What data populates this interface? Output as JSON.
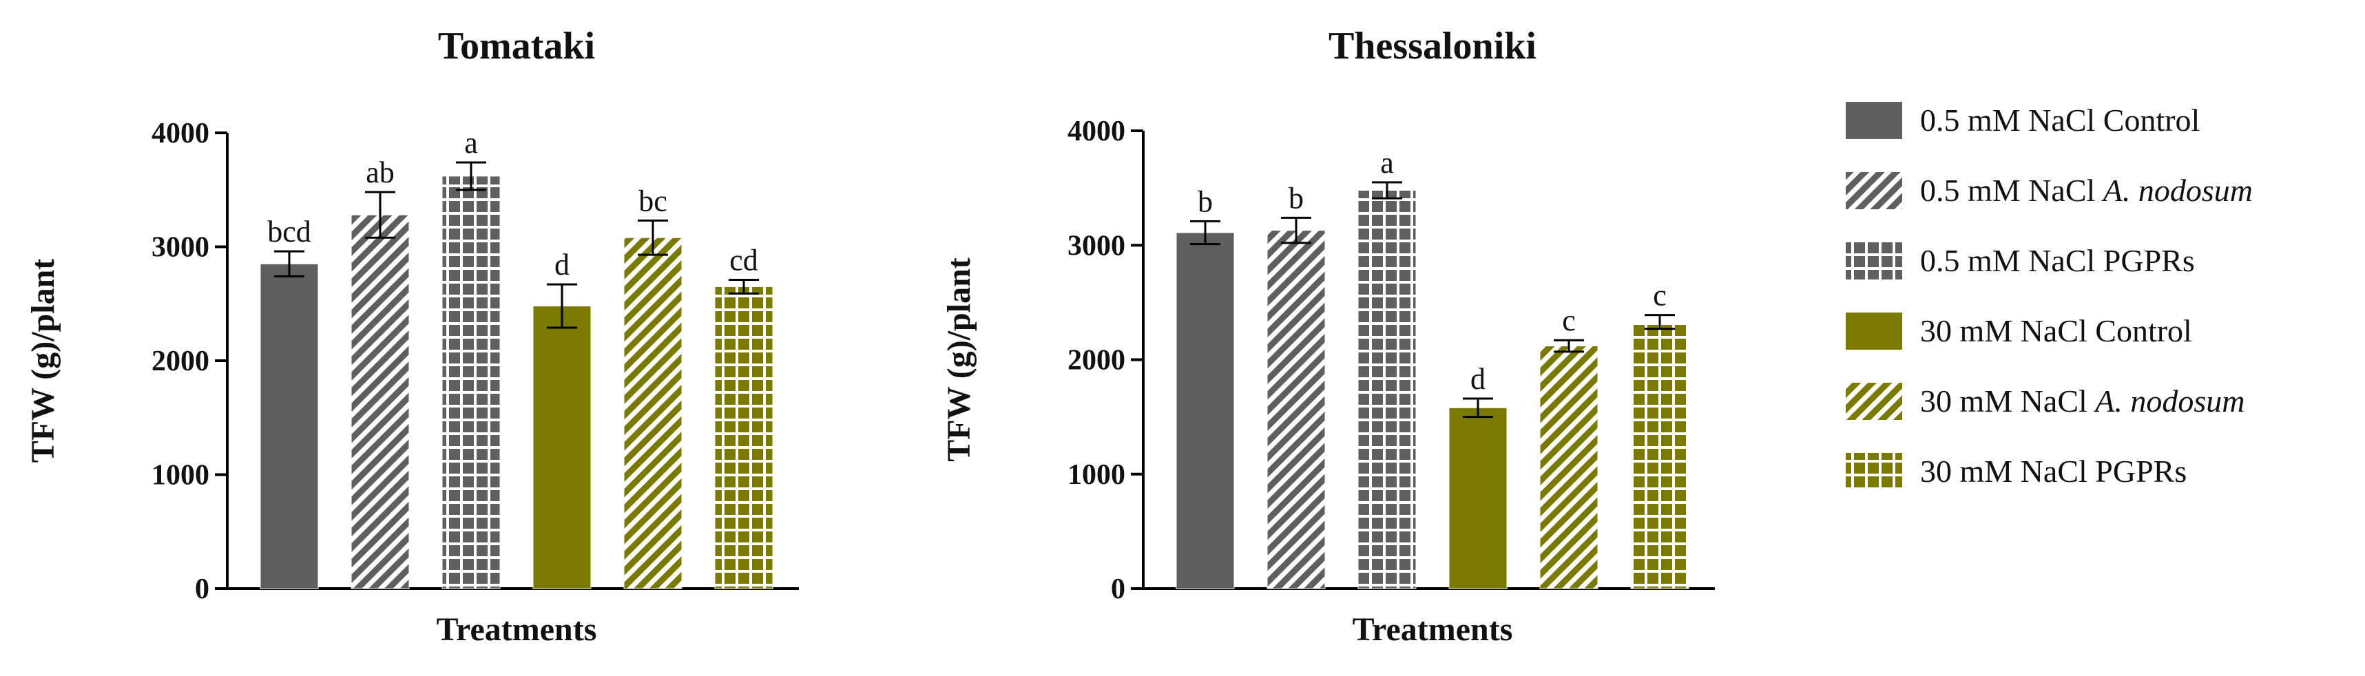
{
  "colors": {
    "grey": "#5f5f5f",
    "olive": "#7a7a00",
    "axis": "#000000",
    "text": "#111111"
  },
  "legend": [
    {
      "label": "0.5 mM NaCl Control",
      "italic": "",
      "color": "grey",
      "pattern": "solid"
    },
    {
      "label": "0.5 mM NaCl ",
      "italic": "A. nodosum",
      "color": "grey",
      "pattern": "diagonal"
    },
    {
      "label": "0.5 mM NaCl PGPRs",
      "italic": "",
      "color": "grey",
      "pattern": "grid"
    },
    {
      "label": "30 mM NaCl Control",
      "italic": "",
      "color": "olive",
      "pattern": "solid"
    },
    {
      "label": "30 mM NaCl ",
      "italic": "A. nodosum",
      "color": "olive",
      "pattern": "diagonal"
    },
    {
      "label": "30 mM NaCl PGPRs",
      "italic": "",
      "color": "olive",
      "pattern": "grid"
    }
  ],
  "chart_data": [
    {
      "type": "bar",
      "title": "Tomataki",
      "xlabel": "Treatments",
      "ylabel": "TFW (g)/plant",
      "ylim": [
        0,
        4000
      ],
      "yticks": [
        0,
        1000,
        2000,
        3000,
        4000
      ],
      "categories": [
        "0.5 mM NaCl Control",
        "0.5 mM NaCl A. nodosum",
        "0.5 mM NaCl PGPRs",
        "30 mM NaCl Control",
        "30 mM NaCl A. nodosum",
        "30 mM NaCl PGPRs"
      ],
      "values": [
        2850,
        3280,
        3620,
        2480,
        3080,
        2650
      ],
      "errors": [
        110,
        200,
        120,
        190,
        150,
        60
      ],
      "letters": [
        "bcd",
        "ab",
        "a",
        "d",
        "bc",
        "cd"
      ]
    },
    {
      "type": "bar",
      "title": "Thessaloniki",
      "xlabel": "Treatments",
      "ylabel": "TFW (g)/plant",
      "ylim": [
        0,
        4000
      ],
      "yticks": [
        0,
        1000,
        2000,
        3000,
        4000
      ],
      "categories": [
        "0.5 mM NaCl Control",
        "0.5 mM NaCl A. nodosum",
        "0.5 mM NaCl PGPRs",
        "30 mM NaCl Control",
        "30 mM NaCl A. nodosum",
        "30 mM NaCl PGPRs"
      ],
      "values": [
        3110,
        3130,
        3480,
        1580,
        2120,
        2330
      ],
      "errors": [
        100,
        110,
        70,
        80,
        50,
        60
      ],
      "letters": [
        "b",
        "b",
        "a",
        "d",
        "c",
        "c"
      ]
    }
  ]
}
